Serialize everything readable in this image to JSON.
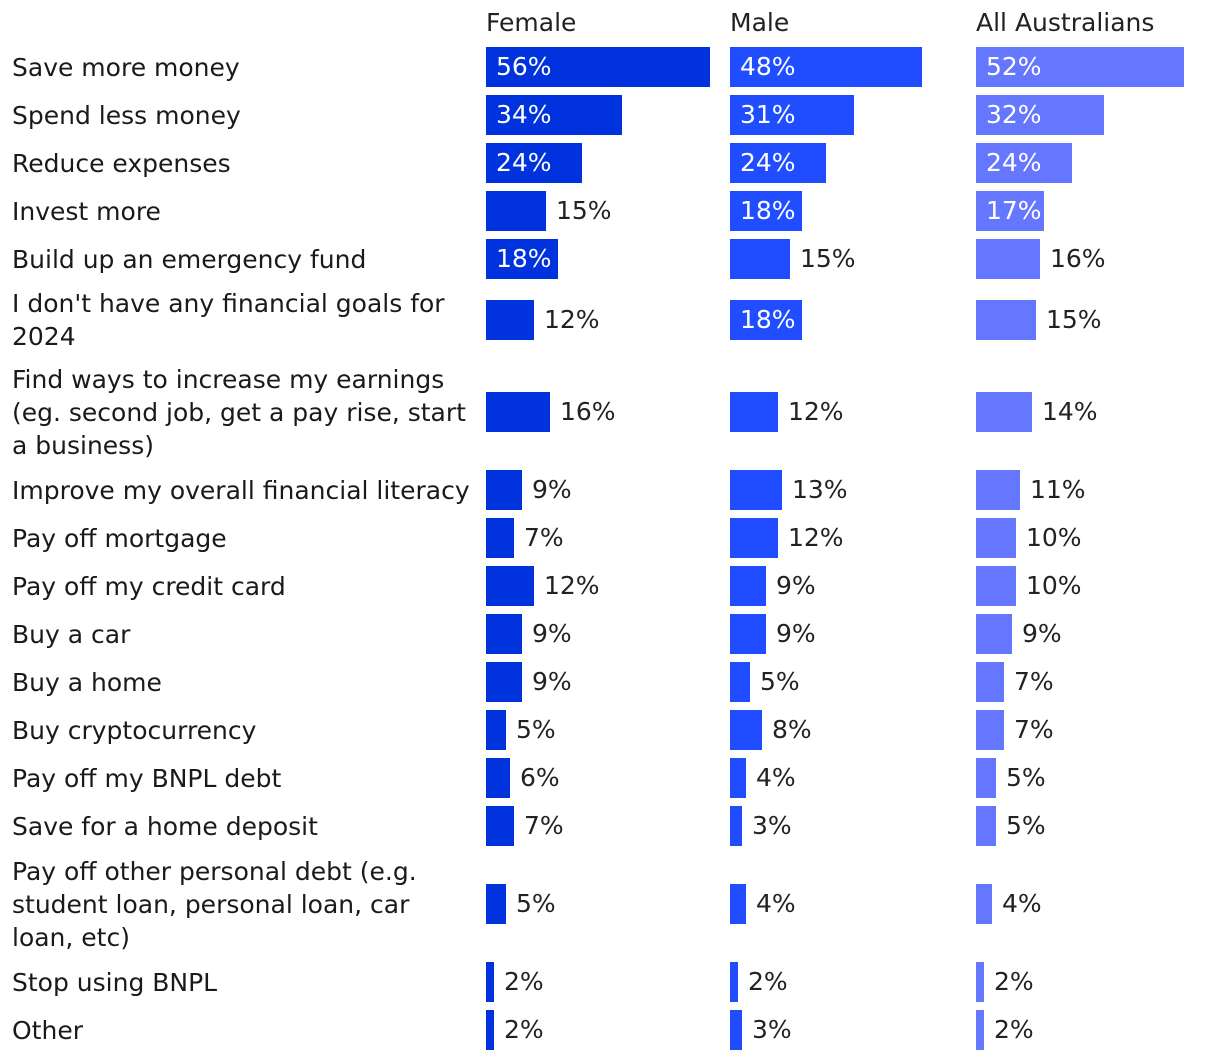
{
  "chart_data": {
    "type": "bar",
    "orientation": "horizontal",
    "value_suffix": "%",
    "categories": [
      "Save more money",
      "Spend less money",
      "Reduce expenses",
      "Invest more",
      "Build up an emergency fund",
      "I don't have any financial goals for 2024",
      "Find ways to increase my earnings (eg. second job, get a pay rise, start a business)",
      "Improve my overall financial literacy",
      "Pay off mortgage",
      "Pay off my credit card",
      "Buy a car",
      "Buy a home",
      "Buy cryptocurrency",
      "Pay off my BNPL debt",
      "Save for a home deposit",
      "Pay off other personal debt (e.g. student loan, personal loan, car loan, etc)",
      "Stop using BNPL",
      "Other"
    ],
    "series": [
      {
        "name": "Female",
        "color": "#0033dd",
        "values": [
          56,
          34,
          24,
          15,
          18,
          12,
          16,
          9,
          7,
          12,
          9,
          9,
          5,
          6,
          7,
          5,
          2,
          2
        ]
      },
      {
        "name": "Male",
        "color": "#1f4dff",
        "values": [
          48,
          31,
          24,
          18,
          15,
          18,
          12,
          13,
          12,
          9,
          9,
          5,
          8,
          4,
          3,
          4,
          2,
          3
        ]
      },
      {
        "name": "All Australians",
        "color": "#6677ff",
        "values": [
          52,
          32,
          24,
          17,
          16,
          15,
          14,
          11,
          10,
          10,
          9,
          7,
          7,
          5,
          5,
          4,
          2,
          2
        ]
      }
    ],
    "xlim": [
      0,
      56
    ]
  }
}
